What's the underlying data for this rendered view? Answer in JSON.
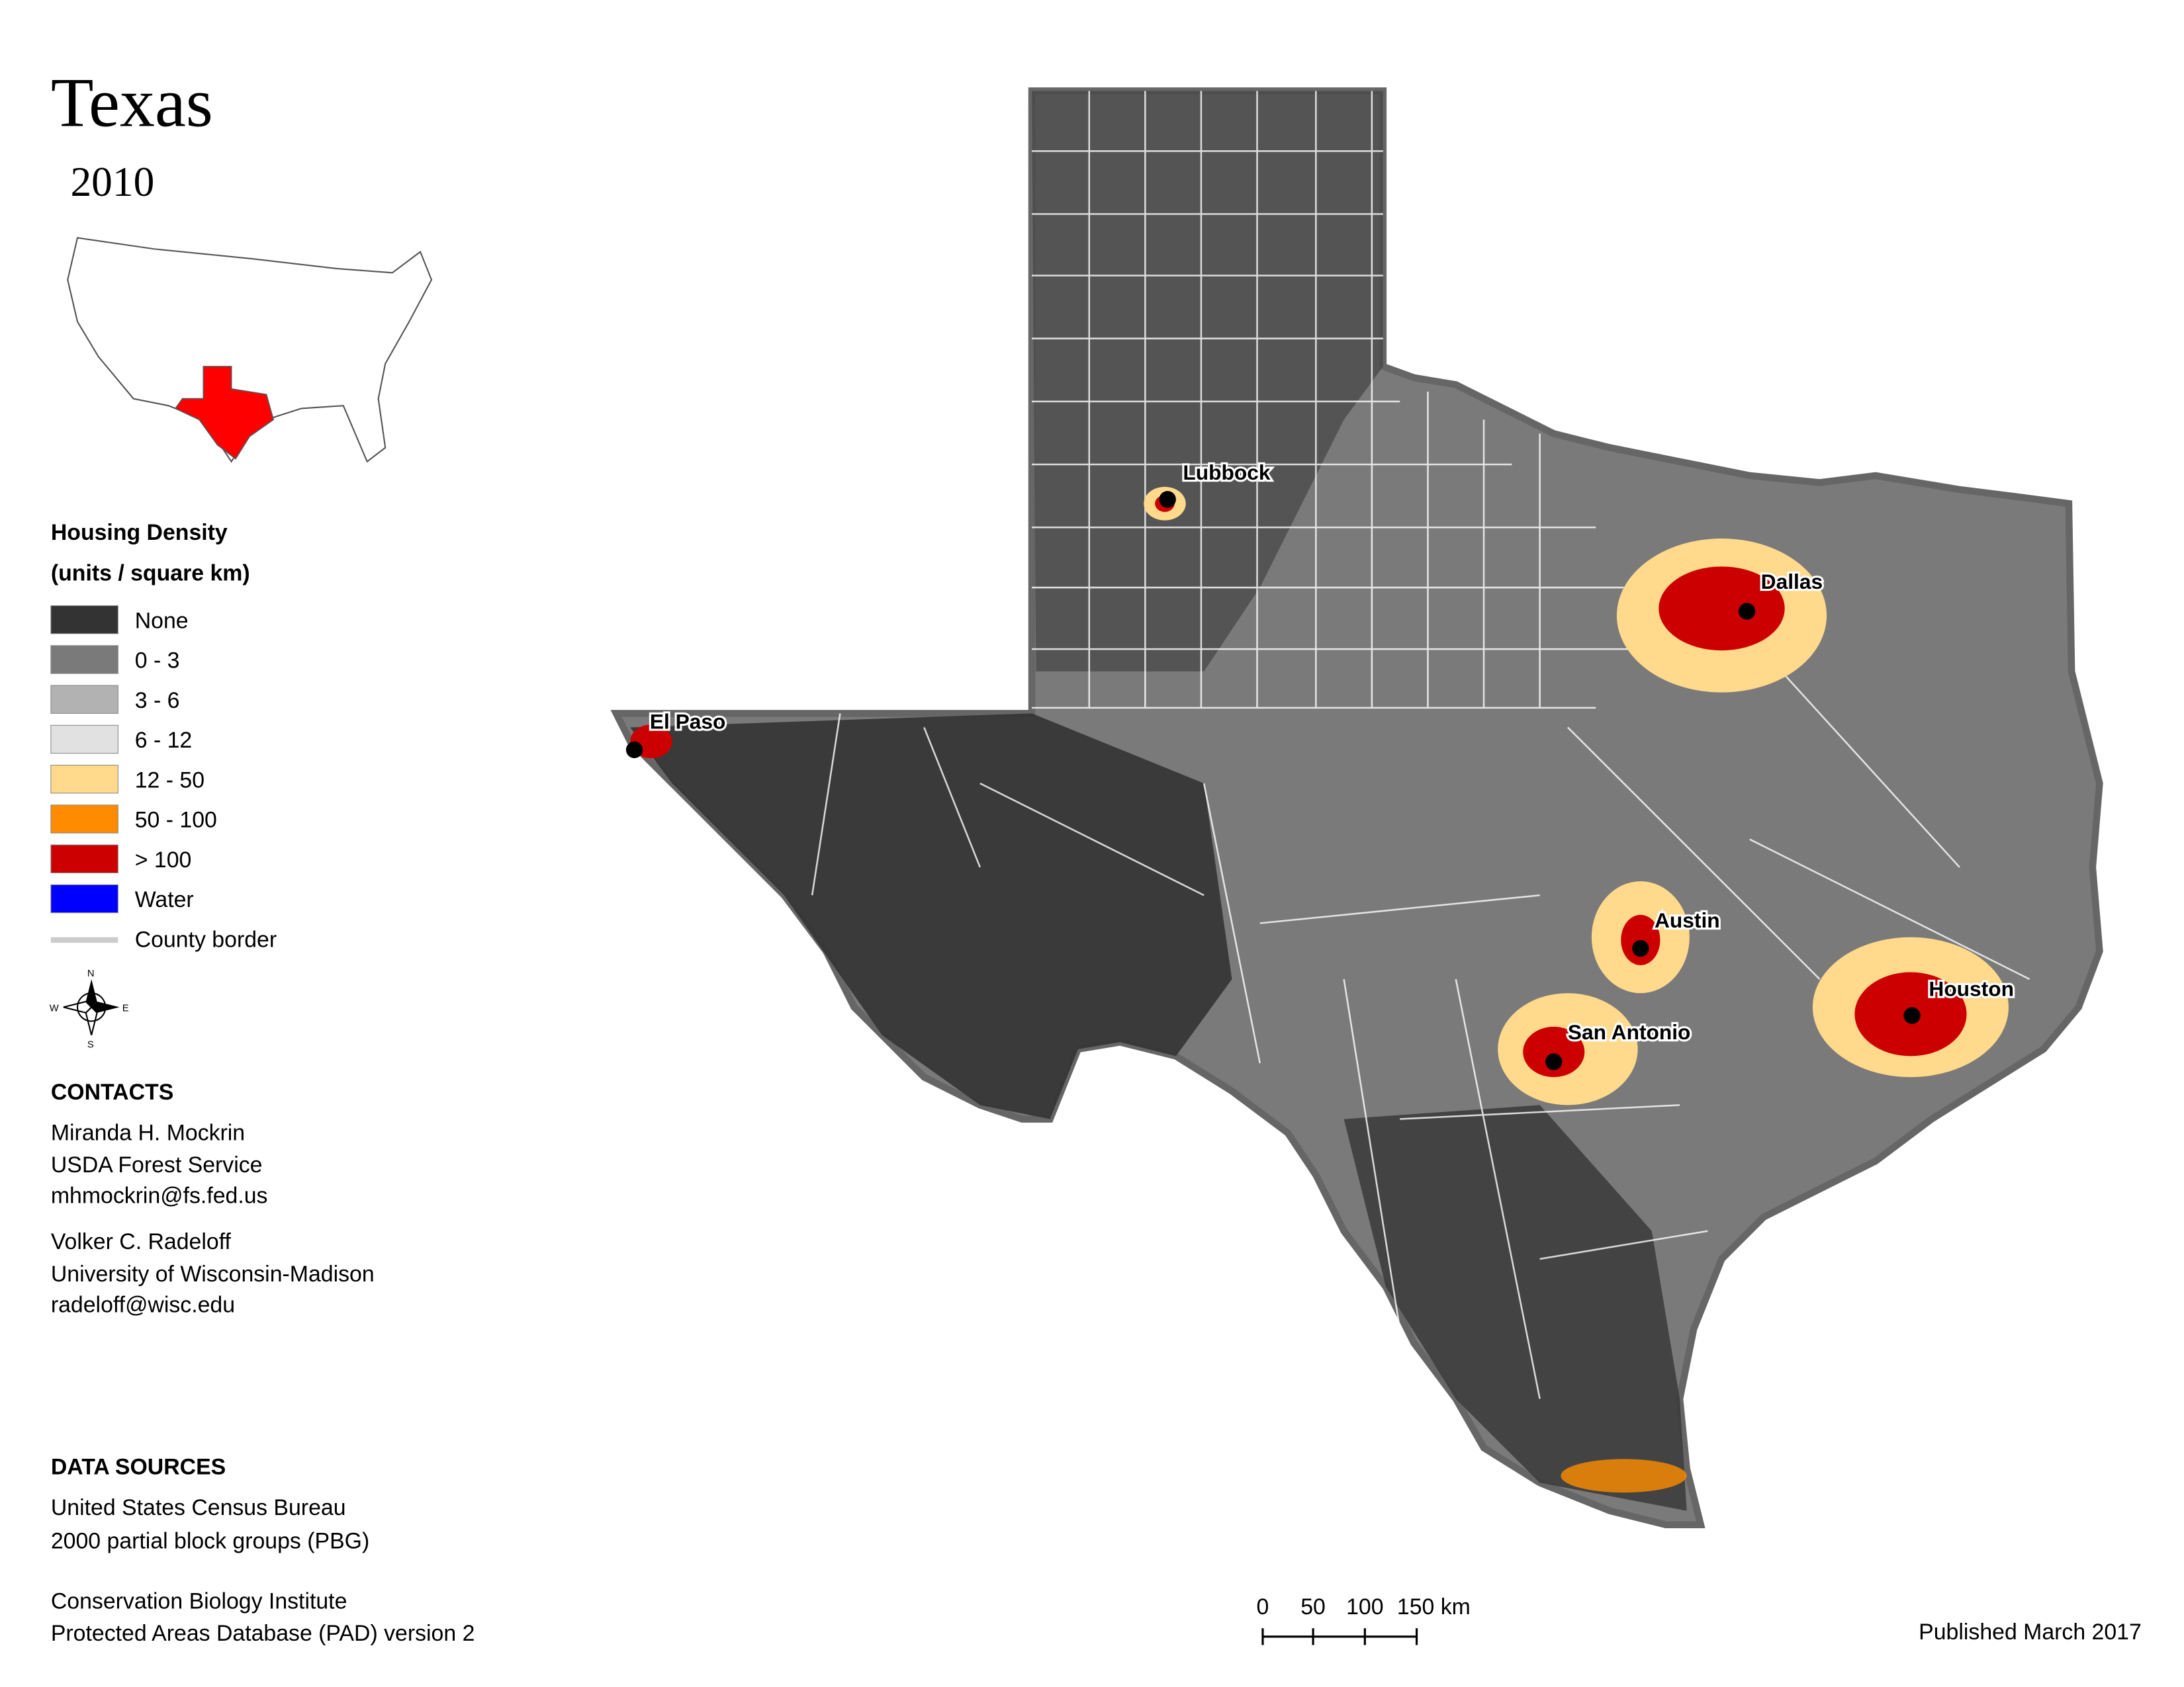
{
  "title": "Texas",
  "year": "2010",
  "legend": {
    "title": "Housing Density",
    "subtitle": "(units / square km)",
    "items": [
      {
        "label": "None",
        "color": "#333333"
      },
      {
        "label": "0 - 3",
        "color": "#7a7a7a"
      },
      {
        "label": "3 - 6",
        "color": "#b2b2b2"
      },
      {
        "label": "6 - 12",
        "color": "#e1e1e1"
      },
      {
        "label": "12 - 50",
        "color": "#ffd98c"
      },
      {
        "label": "50 - 100",
        "color": "#ff8c00"
      },
      {
        "label": "> 100",
        "color": "#cc0000"
      },
      {
        "label": "Water",
        "color": "#0000ff"
      }
    ],
    "border_label": "County border"
  },
  "compass": {
    "n": "N",
    "e": "E",
    "s": "S",
    "w": "W"
  },
  "cities": [
    "Lubbock",
    "Dallas",
    "El Paso",
    "Austin",
    "Houston",
    "San Antonio"
  ],
  "contacts": {
    "heading": "CONTACTS",
    "people": [
      [
        "Miranda H. Mockrin",
        "USDA Forest Service",
        "mhmockrin@fs.fed.us"
      ],
      [
        "Volker C. Radeloff",
        "University of Wisconsin-Madison",
        "radeloff@wisc.edu"
      ]
    ]
  },
  "sources": {
    "heading": "DATA SOURCES",
    "groups": [
      [
        "United States Census Bureau",
        "2000 partial block groups (PBG)"
      ],
      [
        "Conservation Biology Institute",
        "Protected Areas Database (PAD) version 2"
      ]
    ]
  },
  "scale": [
    "0",
    "50",
    "100",
    "150 km"
  ],
  "published": "Published March 2017"
}
